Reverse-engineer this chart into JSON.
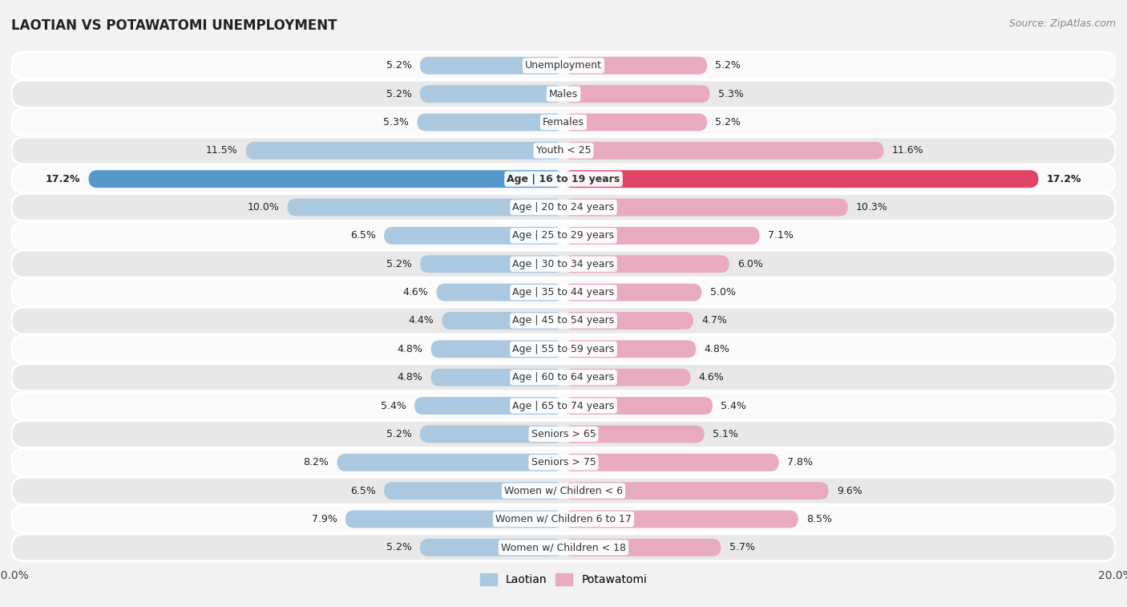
{
  "title": "LAOTIAN VS POTAWATOMI UNEMPLOYMENT",
  "source": "Source: ZipAtlas.com",
  "categories": [
    "Unemployment",
    "Males",
    "Females",
    "Youth < 25",
    "Age | 16 to 19 years",
    "Age | 20 to 24 years",
    "Age | 25 to 29 years",
    "Age | 30 to 34 years",
    "Age | 35 to 44 years",
    "Age | 45 to 54 years",
    "Age | 55 to 59 years",
    "Age | 60 to 64 years",
    "Age | 65 to 74 years",
    "Seniors > 65",
    "Seniors > 75",
    "Women w/ Children < 6",
    "Women w/ Children 6 to 17",
    "Women w/ Children < 18"
  ],
  "laotian": [
    5.2,
    5.2,
    5.3,
    11.5,
    17.2,
    10.0,
    6.5,
    5.2,
    4.6,
    4.4,
    4.8,
    4.8,
    5.4,
    5.2,
    8.2,
    6.5,
    7.9,
    5.2
  ],
  "potawatomi": [
    5.2,
    5.3,
    5.2,
    11.6,
    17.2,
    10.3,
    7.1,
    6.0,
    5.0,
    4.7,
    4.8,
    4.6,
    5.4,
    5.1,
    7.8,
    9.6,
    8.5,
    5.7
  ],
  "laotian_color": "#aac8e0",
  "potawatomi_color": "#e8aabe",
  "laotian_highlight_color": "#5599cc",
  "potawatomi_highlight_color": "#dd4466",
  "highlight_row": 4,
  "bar_height": 0.62,
  "xlim": 20.0,
  "bg_color": "#f2f2f2",
  "row_bg_light": "#fafafa",
  "row_bg_dark": "#e8e8e8",
  "label_fontsize": 9.0,
  "cat_fontsize": 9.0
}
